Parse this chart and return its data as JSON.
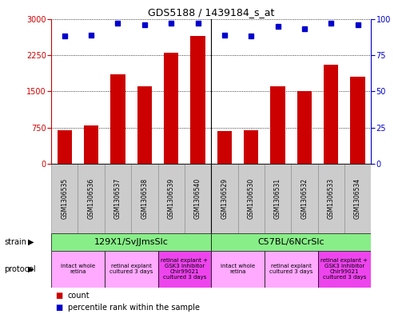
{
  "title": "GDS5188 / 1439184_s_at",
  "samples": [
    "GSM1306535",
    "GSM1306536",
    "GSM1306537",
    "GSM1306538",
    "GSM1306539",
    "GSM1306540",
    "GSM1306529",
    "GSM1306530",
    "GSM1306531",
    "GSM1306532",
    "GSM1306533",
    "GSM1306534"
  ],
  "counts": [
    700,
    800,
    1850,
    1600,
    2300,
    2650,
    680,
    700,
    1600,
    1500,
    2050,
    1800
  ],
  "percentiles": [
    88,
    89,
    97,
    96,
    97,
    97,
    89,
    88,
    95,
    93,
    97,
    96
  ],
  "bar_color": "#cc0000",
  "dot_color": "#0000cc",
  "ylim_left": [
    0,
    3000
  ],
  "ylim_right": [
    0,
    100
  ],
  "yticks_left": [
    0,
    750,
    1500,
    2250,
    3000
  ],
  "yticks_right": [
    0,
    25,
    50,
    75,
    100
  ],
  "strain_labels": [
    "129X1/SvJJmsSlc",
    "C57BL/6NCrSlc"
  ],
  "strain_color": "#88ee88",
  "protocol_color_light": "#ffaaff",
  "protocol_color_dark": "#ee44ee",
  "left_label_color": "#cc0000",
  "right_label_color": "#0000cc",
  "background_color": "#ffffff",
  "xlabel_bg": "#cccccc",
  "title_fontsize": 9,
  "tick_fontsize": 7,
  "sample_fontsize": 5.5,
  "strain_fontsize": 8,
  "protocol_fontsize": 5,
  "legend_fontsize": 7
}
